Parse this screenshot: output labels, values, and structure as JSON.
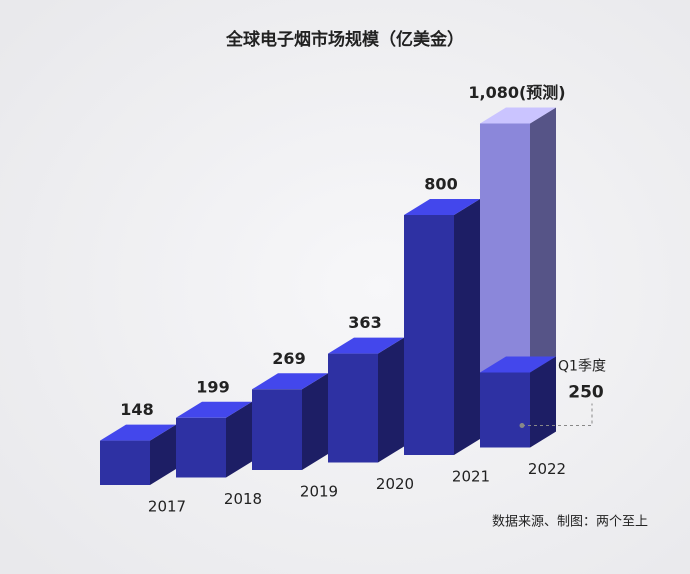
{
  "chart_data": {
    "type": "bar3d",
    "title": "全球电子烟市场规模（亿美金）",
    "categories": [
      "2017",
      "2018",
      "2019",
      "2020",
      "2021",
      "2022"
    ],
    "values": [
      148,
      199,
      269,
      363,
      800,
      1080
    ],
    "value_labels": [
      "148",
      "199",
      "269",
      "363",
      "800",
      "1,080(预测)"
    ],
    "color": "#2e31a3",
    "forecast_color": "#8b87da",
    "annotation": {
      "label": "Q1季度",
      "value": 250
    },
    "source": "数据来源、制图：两个至上"
  }
}
